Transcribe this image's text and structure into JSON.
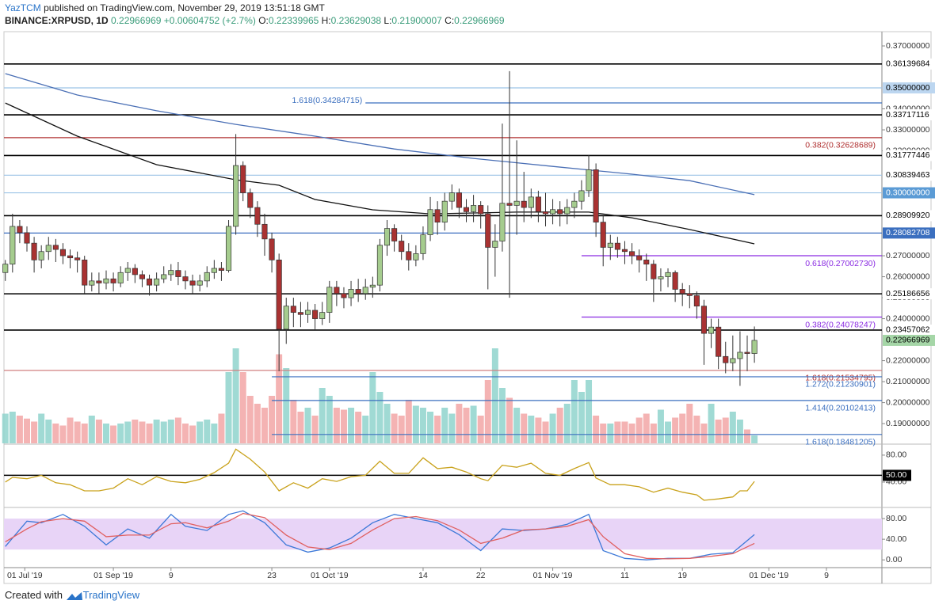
{
  "header": {
    "author": "YazTCM",
    "published": "published on TradingView.com, November 29, 2019 13:51:18 GMT",
    "symbol": "BINANCE:XRPUSD, 1D",
    "change": "+0.00604752 (+2.7%)",
    "ohlc_labels": [
      "O:",
      "H:",
      "L:",
      "C:"
    ]
  },
  "chart_data": [
    {
      "type": "candlestick",
      "xlim": [
        -0.74,
        121.7
      ],
      "ylim": [
        0.1806,
        0.3768
      ],
      "vlim": [
        0,
        100
      ],
      "up_color": "#a5cc8e",
      "down_color": "#a93232",
      "volume_up": "#8fd3cc",
      "volume_down": "#f2a6a6",
      "yticks": [
        {
          "value": 0.37,
          "label": "0.37000000"
        },
        {
          "value": 0.34,
          "label": "0.34000000"
        },
        {
          "value": 0.33,
          "label": "0.33000000"
        },
        {
          "value": 0.32,
          "label": "0.32000000"
        },
        {
          "value": 0.27,
          "label": "0.27000000"
        },
        {
          "value": 0.26,
          "label": "0.26000000"
        },
        {
          "value": 0.25,
          "label": "0.25000000"
        },
        {
          "value": 0.24,
          "label": "0.24000000"
        },
        {
          "value": 0.22,
          "label": "0.22000000"
        },
        {
          "value": 0.21,
          "label": "0.21000000"
        },
        {
          "value": 0.2,
          "label": "0.20000000"
        },
        {
          "value": 0.19,
          "label": "0.19000000"
        }
      ],
      "xticks": [
        {
          "value": 2.7,
          "label": "01 Jul '19"
        },
        {
          "value": 15,
          "label": "01 Sep '19"
        },
        {
          "value": 23,
          "label": "9"
        },
        {
          "value": 37,
          "label": "23"
        },
        {
          "value": 45,
          "label": "01 Oct '19"
        },
        {
          "value": 58,
          "label": "14"
        },
        {
          "value": 66,
          "label": "22"
        },
        {
          "value": 76,
          "label": "01 Nov '19"
        },
        {
          "value": 86,
          "label": "11"
        },
        {
          "value": 94,
          "label": "19"
        },
        {
          "value": 106,
          "label": "01 Dec '19"
        },
        {
          "value": 114,
          "label": "9"
        }
      ],
      "open": [
        0.262,
        0.266,
        0.284,
        0.281,
        0.276,
        0.268,
        0.272,
        0.275,
        0.273,
        0.27,
        0.269,
        0.268,
        0.256,
        0.258,
        0.257,
        0.259,
        0.257,
        0.262,
        0.264,
        0.261,
        0.259,
        0.256,
        0.259,
        0.261,
        0.263,
        0.26,
        0.258,
        0.256,
        0.258,
        0.262,
        0.264,
        0.263,
        0.284,
        0.313,
        0.3,
        0.293,
        0.285,
        0.278,
        0.268,
        0.235,
        0.246,
        0.243,
        0.242,
        0.244,
        0.24,
        0.243,
        0.255,
        0.252,
        0.25,
        0.254,
        0.252,
        0.255,
        0.256,
        0.275,
        0.283,
        0.277,
        0.272,
        0.268,
        0.271,
        0.28,
        0.292,
        0.286,
        0.296,
        0.3,
        0.293,
        0.291,
        0.294,
        0.29,
        0.274,
        0.277,
        0.295,
        0.294,
        0.296,
        0.293,
        0.298,
        0.291,
        0.29,
        0.292,
        0.29,
        0.293,
        0.296,
        0.301,
        0.311,
        0.286,
        0.274,
        0.276,
        0.273,
        0.272,
        0.27,
        0.268,
        0.266,
        0.259,
        0.26,
        0.262,
        0.254,
        0.252,
        0.251,
        0.246,
        0.233,
        0.236,
        0.222,
        0.219,
        0.221,
        0.224,
        0.22339965
      ],
      "high": [
        0.268,
        0.29,
        0.287,
        0.284,
        0.279,
        0.275,
        0.279,
        0.278,
        0.276,
        0.273,
        0.272,
        0.27,
        0.262,
        0.262,
        0.263,
        0.262,
        0.265,
        0.267,
        0.266,
        0.263,
        0.261,
        0.262,
        0.265,
        0.266,
        0.267,
        0.263,
        0.261,
        0.261,
        0.265,
        0.268,
        0.267,
        0.287,
        0.328,
        0.315,
        0.302,
        0.296,
        0.29,
        0.281,
        0.271,
        0.25,
        0.25,
        0.248,
        0.248,
        0.247,
        0.248,
        0.258,
        0.258,
        0.255,
        0.258,
        0.259,
        0.259,
        0.26,
        0.278,
        0.287,
        0.285,
        0.28,
        0.276,
        0.275,
        0.284,
        0.298,
        0.296,
        0.3,
        0.304,
        0.302,
        0.297,
        0.299,
        0.296,
        0.294,
        0.285,
        0.333,
        0.358,
        0.325,
        0.31,
        0.302,
        0.301,
        0.3,
        0.297,
        0.296,
        0.297,
        0.3,
        0.306,
        0.318,
        0.314,
        0.289,
        0.28,
        0.279,
        0.277,
        0.276,
        0.273,
        0.271,
        0.268,
        0.264,
        0.264,
        0.263,
        0.257,
        0.256,
        0.253,
        0.249,
        0.24,
        0.24,
        0.229,
        0.232,
        0.234,
        0.232,
        0.23629038
      ],
      "low": [
        0.258,
        0.262,
        0.276,
        0.272,
        0.262,
        0.264,
        0.268,
        0.267,
        0.266,
        0.264,
        0.262,
        0.252,
        0.253,
        0.252,
        0.254,
        0.253,
        0.255,
        0.258,
        0.257,
        0.255,
        0.251,
        0.253,
        0.257,
        0.258,
        0.256,
        0.254,
        0.252,
        0.253,
        0.255,
        0.259,
        0.258,
        0.262,
        0.28,
        0.296,
        0.288,
        0.279,
        0.27,
        0.262,
        0.215,
        0.228,
        0.236,
        0.236,
        0.238,
        0.235,
        0.237,
        0.238,
        0.246,
        0.245,
        0.246,
        0.248,
        0.249,
        0.25,
        0.253,
        0.27,
        0.272,
        0.268,
        0.263,
        0.265,
        0.268,
        0.277,
        0.28,
        0.282,
        0.292,
        0.288,
        0.286,
        0.286,
        0.283,
        0.254,
        0.26,
        0.272,
        0.25,
        0.28,
        0.286,
        0.288,
        0.286,
        0.284,
        0.285,
        0.284,
        0.285,
        0.288,
        0.292,
        0.298,
        0.279,
        0.265,
        0.268,
        0.269,
        0.266,
        0.266,
        0.262,
        0.258,
        0.248,
        0.253,
        0.255,
        0.248,
        0.246,
        0.245,
        0.24,
        0.218,
        0.226,
        0.216,
        0.214,
        0.215,
        0.208,
        0.215,
        0.21900007
      ],
      "close": [
        0.266,
        0.284,
        0.281,
        0.276,
        0.268,
        0.272,
        0.275,
        0.273,
        0.27,
        0.269,
        0.268,
        0.256,
        0.258,
        0.257,
        0.259,
        0.257,
        0.262,
        0.264,
        0.261,
        0.259,
        0.256,
        0.259,
        0.261,
        0.263,
        0.26,
        0.258,
        0.256,
        0.258,
        0.262,
        0.264,
        0.263,
        0.284,
        0.313,
        0.3,
        0.293,
        0.285,
        0.278,
        0.268,
        0.235,
        0.246,
        0.243,
        0.242,
        0.244,
        0.24,
        0.243,
        0.255,
        0.252,
        0.25,
        0.254,
        0.252,
        0.255,
        0.256,
        0.275,
        0.283,
        0.277,
        0.272,
        0.268,
        0.271,
        0.28,
        0.292,
        0.286,
        0.296,
        0.3,
        0.293,
        0.291,
        0.294,
        0.29,
        0.274,
        0.277,
        0.295,
        0.294,
        0.296,
        0.293,
        0.298,
        0.291,
        0.29,
        0.292,
        0.29,
        0.293,
        0.296,
        0.301,
        0.311,
        0.286,
        0.274,
        0.276,
        0.273,
        0.272,
        0.27,
        0.268,
        0.266,
        0.259,
        0.26,
        0.262,
        0.254,
        0.252,
        0.251,
        0.246,
        0.233,
        0.236,
        0.222,
        0.219,
        0.221,
        0.224,
        0.2234,
        0.22966969
      ],
      "volume": [
        30,
        32,
        28,
        25,
        22,
        30,
        24,
        20,
        18,
        26,
        22,
        20,
        28,
        24,
        20,
        18,
        20,
        22,
        24,
        22,
        20,
        24,
        22,
        24,
        26,
        20,
        18,
        22,
        24,
        20,
        30,
        72,
        96,
        72,
        48,
        40,
        36,
        48,
        90,
        76,
        44,
        32,
        36,
        28,
        56,
        48,
        36,
        34,
        36,
        32,
        28,
        72,
        52,
        40,
        30,
        28,
        44,
        38,
        36,
        32,
        28,
        36,
        30,
        40,
        36,
        38,
        28,
        64,
        96,
        56,
        46,
        36,
        30,
        28,
        26,
        22,
        30,
        36,
        40,
        64,
        52,
        64,
        28,
        20,
        20,
        22,
        22,
        20,
        26,
        30,
        20,
        34,
        22,
        26,
        30,
        40,
        28,
        20,
        40,
        24,
        26,
        32,
        24,
        14,
        8
      ],
      "series": [
        {
          "color": "#4a6fb5",
          "x": [
            0,
            10,
            21,
            32,
            43,
            54,
            65,
            76,
            87,
            95,
            104
          ],
          "values": [
            0.3568,
            0.3466,
            0.3391,
            0.3326,
            0.327,
            0.3209,
            0.3164,
            0.3126,
            0.3089,
            0.3058,
            0.2991
          ]
        },
        {
          "color": "#111111",
          "x": [
            0,
            10,
            21,
            32,
            38,
            43,
            51,
            59,
            71,
            81,
            87,
            95,
            104
          ],
          "values": [
            0.3428,
            0.327,
            0.3134,
            0.3062,
            0.3036,
            0.2968,
            0.2919,
            0.29,
            0.2908,
            0.2908,
            0.2881,
            0.2825,
            0.2757
          ]
        }
      ],
      "levels": [
        {
          "value": 0.36139684,
          "color": "#000000"
        },
        {
          "value": 0.35,
          "label": "0.35000000",
          "color": "#9cc3e6",
          "badge": "#bcd6f0"
        },
        {
          "value": 0.34284715,
          "color": "#3b6fbf",
          "x0": 50,
          "note": "1.618(0.34284715)",
          "note_pos": "left"
        },
        {
          "value": 0.33717116,
          "color": "#000000"
        },
        {
          "value": 0.32628689,
          "color": "#b03030",
          "note": "0.382(0.32628689)"
        },
        {
          "value": 0.31777446,
          "color": "#000000"
        },
        {
          "value": 0.30839463,
          "color": "#9cc3e6"
        },
        {
          "value": 0.3,
          "label": "0.30000000",
          "color": "#9cc3e6",
          "badge": "#5b9bd5"
        },
        {
          "value": 0.2890992,
          "label": "0.28909920",
          "color": "#000000"
        },
        {
          "value": 0.28082708,
          "color": "#3b6fbf",
          "badge": "#3b6fbf"
        },
        {
          "value": 0.2700273,
          "color": "#8a2be2",
          "x0": 80,
          "note": "0.618(0.27002730)"
        },
        {
          "value": 0.25186656,
          "color": "#000000"
        },
        {
          "value": 0.24078247,
          "color": "#8a2be2",
          "x0": 80,
          "note": "0.382(0.24078247)"
        },
        {
          "value": 0.23457062,
          "color": "#000000"
        },
        {
          "value": 0.21534795,
          "color": "#d08080",
          "note": "1.618(0.21534795)"
        },
        {
          "value": 0.21230901,
          "color": "#3b6fbf",
          "x0": 37,
          "note": "1.272(0.21230901)"
        },
        {
          "value": 0.20102413,
          "color": "#3b6fbf",
          "x0": 37,
          "note": "1.414(0.20102413)"
        },
        {
          "value": 0.18481205,
          "color": "#3b6fbf",
          "x0": 37,
          "note": "1.618(0.18481205)"
        }
      ]
    },
    {
      "type": "line",
      "ylim": [
        3.5,
        94
      ],
      "yticks": [
        {
          "value": 80,
          "label": "80.00"
        },
        {
          "value": 40,
          "label": "40.00"
        }
      ],
      "hline": {
        "value": 50,
        "label": "50.00"
      },
      "series": [
        {
          "color": "#c9a21c",
          "x": [
            0,
            1,
            3,
            5,
            7,
            9,
            11,
            13,
            15,
            17,
            19,
            21,
            23,
            25,
            27,
            29,
            31,
            32,
            34,
            36,
            38,
            40,
            42,
            44,
            46,
            48,
            50,
            52,
            54,
            56,
            58,
            60,
            62,
            64,
            66,
            67,
            69,
            71,
            73,
            75,
            77,
            79,
            81,
            82,
            84,
            86,
            88,
            90,
            92,
            94,
            96,
            97,
            99,
            101,
            102,
            103,
            104
          ],
          "values": [
            40,
            47,
            45,
            50,
            39,
            36,
            27,
            27,
            31,
            45,
            36,
            48,
            41,
            39,
            44,
            54,
            68,
            89,
            74,
            55,
            27,
            39,
            31,
            45,
            41,
            48,
            50,
            71,
            53,
            53,
            76,
            60,
            62,
            55,
            45,
            42,
            65,
            62,
            68,
            53,
            50,
            60,
            69,
            46,
            36,
            36,
            33,
            25,
            31,
            25,
            21,
            13,
            15,
            18,
            27,
            27,
            41
          ]
        }
      ]
    },
    {
      "type": "line",
      "ylim": [
        -15,
        98.5
      ],
      "yticks": [
        {
          "value": 80,
          "label": "80.00"
        },
        {
          "value": 40,
          "label": "40.00"
        },
        {
          "value": 0,
          "label": "0.00"
        }
      ],
      "band": [
        20,
        80
      ],
      "band_color": "#e8d4f7",
      "series": [
        {
          "color": "#3c78d8",
          "x": [
            0,
            3,
            5,
            8,
            11,
            14,
            17,
            20,
            23,
            25,
            28,
            31,
            33,
            36,
            39,
            42,
            45,
            48,
            51,
            54,
            57,
            60,
            63,
            66,
            69,
            72,
            75,
            78,
            81,
            83,
            86,
            89,
            92,
            95,
            98,
            101,
            104
          ],
          "values": [
            26,
            75,
            72,
            88,
            65,
            29,
            60,
            42,
            88,
            65,
            57,
            88,
            95,
            72,
            29,
            15,
            23,
            42,
            72,
            88,
            80,
            72,
            49,
            18,
            60,
            57,
            60,
            69,
            88,
            18,
            3,
            0,
            3,
            3,
            11,
            14,
            49
          ]
        },
        {
          "color": "#e06060",
          "x": [
            0,
            3,
            5,
            8,
            11,
            14,
            17,
            20,
            23,
            25,
            28,
            31,
            33,
            36,
            39,
            42,
            45,
            48,
            51,
            54,
            57,
            60,
            63,
            66,
            69,
            72,
            75,
            78,
            81,
            83,
            86,
            89,
            92,
            95,
            98,
            101,
            104
          ],
          "values": [
            35,
            60,
            74,
            80,
            75,
            45,
            48,
            48,
            70,
            72,
            62,
            75,
            90,
            82,
            48,
            25,
            20,
            32,
            58,
            80,
            84,
            76,
            58,
            32,
            42,
            58,
            60,
            65,
            78,
            45,
            12,
            3,
            2,
            3,
            7,
            12,
            32
          ]
        }
      ]
    }
  ],
  "footer": {
    "created": "Created with",
    "brand": "TradingView"
  }
}
